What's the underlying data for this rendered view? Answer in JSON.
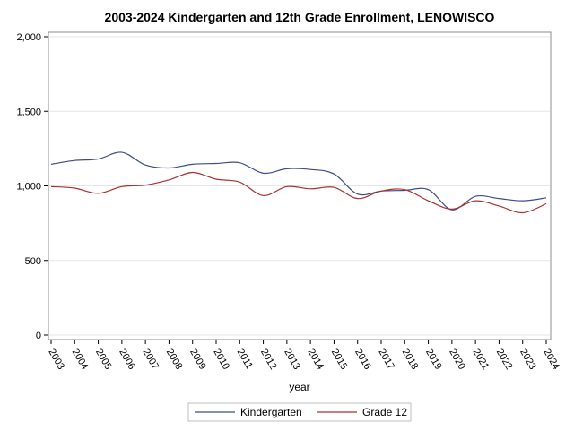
{
  "chart_data": {
    "type": "line",
    "title": "2003-2024 Kindergarten and 12th Grade Enrollment, LENOWISCO",
    "xlabel": "year",
    "ylabel": "",
    "x": [
      "2003",
      "2004",
      "2005",
      "2006",
      "2007",
      "2008",
      "2009",
      "2010",
      "2011",
      "2012",
      "2013",
      "2014",
      "2015",
      "2016",
      "2017",
      "2018",
      "2019",
      "2020",
      "2021",
      "2022",
      "2023",
      "2024"
    ],
    "ylim": [
      0,
      2000
    ],
    "yticks": [
      0,
      500,
      1000,
      1500,
      2000
    ],
    "ytick_labels": [
      "0",
      "500",
      "1,000",
      "1,500",
      "2,000"
    ],
    "grid": true,
    "legend_position": "bottom",
    "series": [
      {
        "name": "Kindergarten",
        "color": "#3b4d88",
        "values": [
          1145,
          1170,
          1180,
          1225,
          1140,
          1120,
          1145,
          1150,
          1155,
          1085,
          1115,
          1110,
          1080,
          945,
          965,
          970,
          975,
          840,
          930,
          915,
          900,
          920
        ]
      },
      {
        "name": "Grade 12",
        "color": "#a83232",
        "values": [
          995,
          985,
          950,
          995,
          1005,
          1040,
          1090,
          1045,
          1025,
          935,
          995,
          980,
          990,
          915,
          965,
          975,
          900,
          845,
          900,
          865,
          820,
          880
        ]
      }
    ]
  }
}
